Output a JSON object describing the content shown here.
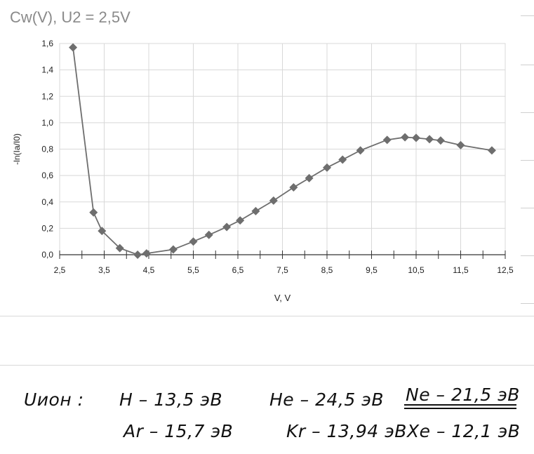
{
  "chart_data": {
    "type": "line",
    "title": "Cw(V), U2 = 2,5V",
    "xlabel": "V, V",
    "ylabel": "-ln(Ia/I0)",
    "xlim": [
      2.5,
      12.5
    ],
    "ylim": [
      0.0,
      1.6
    ],
    "x_ticks": [
      "2,5",
      "3,5",
      "4,5",
      "5,5",
      "6,5",
      "7,5",
      "8,5",
      "9,5",
      "10,5",
      "11,5",
      "12,5"
    ],
    "y_ticks": [
      "0,0",
      "0,2",
      "0,4",
      "0,6",
      "0,8",
      "1,0",
      "1,2",
      "1,4",
      "1,6"
    ],
    "grid": true,
    "series": [
      {
        "color": "#6e6e6e",
        "x": [
          2.8,
          3.26,
          3.45,
          3.85,
          4.25,
          4.45,
          5.05,
          5.5,
          5.85,
          6.25,
          6.55,
          6.9,
          7.3,
          7.75,
          8.1,
          8.5,
          8.85,
          9.25,
          9.85,
          10.25,
          10.5,
          10.8,
          11.05,
          11.5,
          12.2
        ],
        "y": [
          1.57,
          0.32,
          0.18,
          0.05,
          0.0,
          0.01,
          0.04,
          0.1,
          0.15,
          0.21,
          0.26,
          0.33,
          0.41,
          0.51,
          0.58,
          0.66,
          0.72,
          0.79,
          0.87,
          0.89,
          0.885,
          0.875,
          0.865,
          0.83,
          0.79
        ]
      }
    ]
  },
  "notes": {
    "label": "Uион :",
    "row1": [
      {
        "text": "H  – 13,5 эВ"
      },
      {
        "text": "He – 24,5 эВ"
      },
      {
        "text": "Ne – 21,5 эВ"
      }
    ],
    "row2": [
      {
        "text": "Ar – 15,7 эВ"
      },
      {
        "text": "Kr – 13,94 эВ"
      },
      {
        "text": "Xe – 12,1 эВ"
      }
    ]
  }
}
